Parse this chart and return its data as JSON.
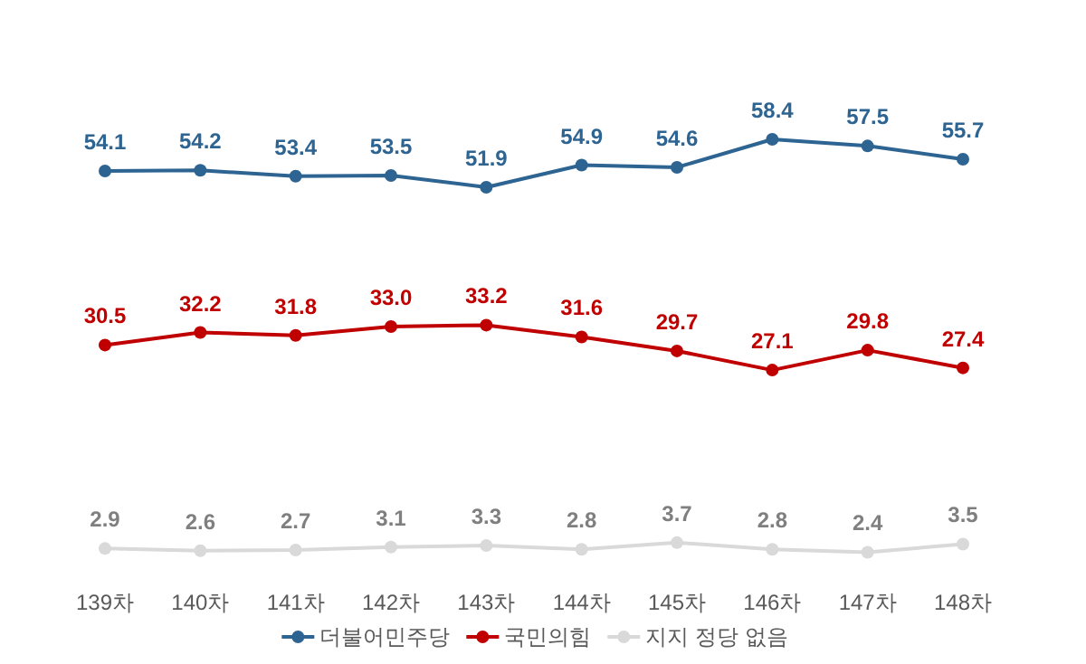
{
  "chart_data": {
    "type": "line",
    "categories": [
      "139차",
      "140차",
      "141차",
      "142차",
      "143차",
      "144차",
      "145차",
      "146차",
      "147차",
      "148차"
    ],
    "series": [
      {
        "name": "더불어민주당",
        "color": "#2e6491",
        "values": [
          54.1,
          54.2,
          53.4,
          53.5,
          51.9,
          54.9,
          54.6,
          58.4,
          57.5,
          55.7
        ],
        "value_labels": [
          "54.1",
          "54.2",
          "53.4",
          "53.5",
          "51.9",
          "54.9",
          "54.6",
          "58.4",
          "57.5",
          "55.7"
        ]
      },
      {
        "name": "국민의힘",
        "color": "#c00000",
        "values": [
          30.5,
          32.2,
          31.8,
          33.0,
          33.2,
          31.6,
          29.7,
          27.1,
          29.8,
          27.4
        ],
        "value_labels": [
          "30.5",
          "32.2",
          "31.8",
          "33.0",
          "33.2",
          "31.6",
          "29.7",
          "27.1",
          "29.8",
          "27.4"
        ]
      },
      {
        "name": "지지 정당 없음",
        "color": "#d9d9d9",
        "values": [
          2.9,
          2.6,
          2.7,
          3.1,
          3.3,
          2.8,
          3.7,
          2.8,
          2.4,
          3.5
        ],
        "value_labels": [
          "2.9",
          "2.6",
          "2.7",
          "3.1",
          "3.3",
          "2.8",
          "3.7",
          "2.8",
          "2.4",
          "3.5"
        ]
      }
    ],
    "legend": "bottom",
    "marker": "circle",
    "line_style": "solid"
  }
}
